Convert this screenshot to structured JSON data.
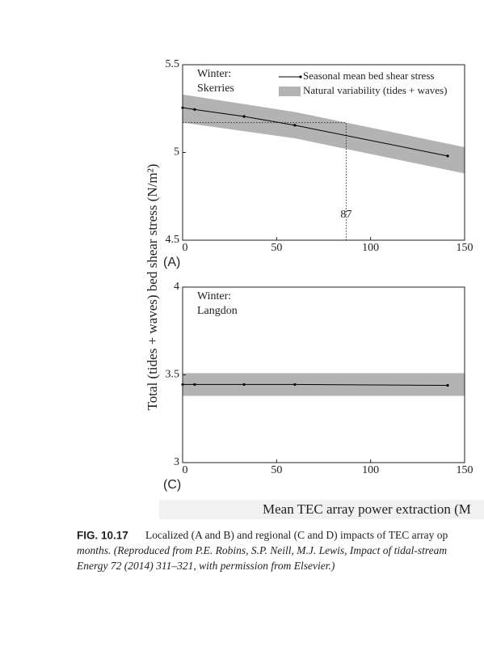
{
  "chart_data": [
    {
      "type": "line",
      "panel": "(A)",
      "label_lines": [
        "Winter:",
        "Skerries"
      ],
      "xlim": [
        0,
        150
      ],
      "xticks": [
        0,
        50,
        100,
        150
      ],
      "ylim": [
        4.5,
        5.5
      ],
      "yticks": [
        4.5,
        5,
        5.5
      ],
      "legend": "upper right",
      "series": [
        {
          "name": "Seasonal mean bed shear stress",
          "color": "#000000",
          "x": [
            0,
            6.4,
            32.7,
            59.7,
            141
          ],
          "values": [
            5.255,
            5.245,
            5.205,
            5.155,
            4.98
          ]
        }
      ],
      "bands": [
        {
          "name": "Natural variability (tides + waves)",
          "color": "#b3b3b3",
          "x": [
            0,
            60,
            150
          ],
          "upper": [
            5.33,
            5.23,
            5.03
          ],
          "lower": [
            5.17,
            5.08,
            4.88
          ]
        }
      ],
      "annotation": {
        "x": 87,
        "y": 5.17
      }
    },
    {
      "type": "line",
      "panel": "(C)",
      "label_lines": [
        "Winter:",
        "Langdon"
      ],
      "xlim": [
        0,
        150
      ],
      "xticks": [
        0,
        50,
        100,
        150
      ],
      "ylim": [
        3,
        4
      ],
      "yticks": [
        3,
        3.5,
        4
      ],
      "series": [
        {
          "color": "#000000",
          "x": [
            0,
            6.4,
            32.7,
            59.7,
            141
          ],
          "values": [
            3.445,
            3.445,
            3.445,
            3.445,
            3.44
          ]
        }
      ],
      "bands": [
        {
          "color": "#b3b3b3",
          "x": [
            0,
            150
          ],
          "upper": [
            3.51,
            3.51
          ],
          "lower": [
            3.38,
            3.38
          ]
        }
      ]
    }
  ],
  "axis_labels": {
    "y": "Total (tides + waves) bed shear stress (N/m²)",
    "x": "Mean TEC array power extraction (M"
  },
  "caption": {
    "label": "FIG. 10.17",
    "lines": [
      "Localized (A and B) and regional (C and D) impacts of TEC array op",
      "months. (Reproduced from P.E. Robins, S.P. Neill, M.J. Lewis, Impact of tidal-stream",
      "Energy 72 (2014) 311–321, with permission from Elsevier.)"
    ]
  }
}
